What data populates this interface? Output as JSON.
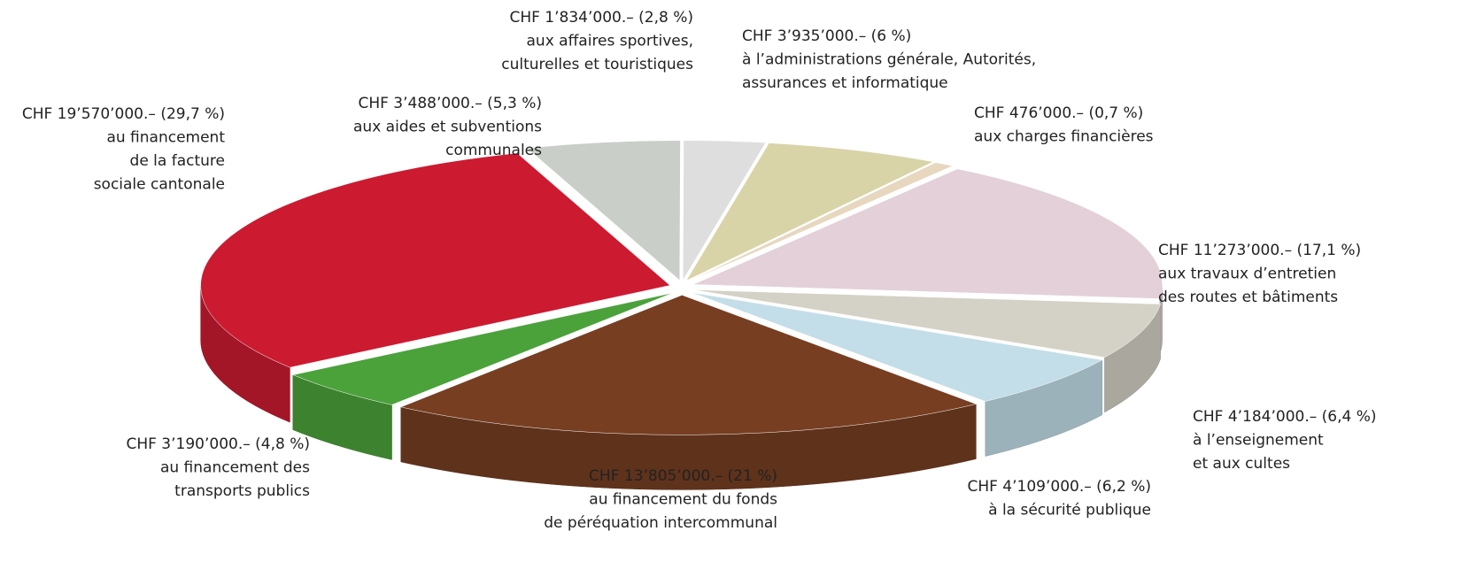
{
  "chart_data": {
    "type": "pie3d",
    "categories": [
      [
        "aux aides et subventions",
        "communales"
      ],
      [
        "aux affaires sportives,",
        "culturelles et touristiques"
      ],
      [
        "à l’administrations générale, Autorités,",
        "assurances et informatique"
      ],
      [
        "aux charges financières"
      ],
      [
        "aux travaux d’entretien",
        "des routes et bâtiments"
      ],
      [
        "à l’enseignement",
        "et aux cultes"
      ],
      [
        "à la sécurité publique"
      ],
      [
        "au financement du fonds",
        "de péréquation intercommunal"
      ],
      [
        "au financement des",
        "transports publics"
      ],
      [
        "au financement",
        "de la facture",
        "sociale cantonale"
      ]
    ],
    "amount_labels": [
      "CHF 3’488’000.–",
      "CHF 1’834’000.–",
      "CHF 3’935’000.–",
      "CHF 476’000.–",
      "CHF 11’273’000.–",
      "CHF 4’184’000.–",
      "CHF 4’109’000.–",
      "CHF 13’805’000.–",
      "CHF 3’190’000.–",
      "CHF 19’570’000.–"
    ],
    "values": [
      5.3,
      2.8,
      6,
      0.7,
      17.1,
      6.4,
      6.2,
      21,
      4.8,
      29.7
    ],
    "value_labels": [
      "(5,3 %)",
      "(2,8 %)",
      "(6 %)",
      "(0,7 %)",
      "(17,1 %)",
      "(6,4 %)",
      "(6,2 %)",
      "(21 %)",
      "(4,8 %)",
      "(29,7 %)"
    ],
    "colors": [
      "#c9cec9",
      "#dedede",
      "#d9d3a8",
      "#e7d7bf",
      "#e3d0d9",
      "#d4d1c7",
      "#c3dee9",
      "#773e22",
      "#4ba23b",
      "#cc1b31"
    ]
  }
}
